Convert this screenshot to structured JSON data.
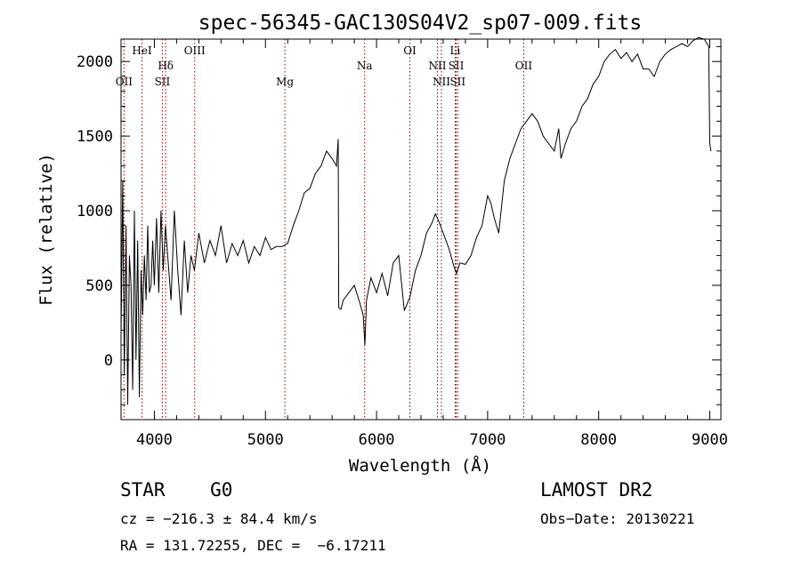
{
  "chart_data": {
    "type": "line",
    "title": "spec-56345-GAC130S04V2_sp07-009.fits",
    "xlabel": "Wavelength (Å)",
    "ylabel": "Flux (relative)",
    "xlim": [
      3700,
      9100
    ],
    "ylim": [
      -400,
      2150
    ],
    "xticks": [
      {
        "v": 4000,
        "label": "4000"
      },
      {
        "v": 5000,
        "label": "5000"
      },
      {
        "v": 6000,
        "label": "6000"
      },
      {
        "v": 7000,
        "label": "7000"
      },
      {
        "v": 8000,
        "label": "8000"
      },
      {
        "v": 9000,
        "label": "9000"
      }
    ],
    "yticks": [
      {
        "v": 0,
        "label": "0"
      },
      {
        "v": 500,
        "label": "500"
      },
      {
        "v": 1000,
        "label": "1000"
      },
      {
        "v": 1500,
        "label": "1500"
      },
      {
        "v": 2000,
        "label": "2000"
      }
    ],
    "line_color": "#000000",
    "marker_color": "#8b0000",
    "lines": [
      {
        "label": "OII",
        "x": 3727,
        "row": 3
      },
      {
        "label": "HeI",
        "x": 3889,
        "row": 1
      },
      {
        "label": "Hδ",
        "x": 4102,
        "row": 2
      },
      {
        "label": "SII",
        "x": 4072,
        "row": 3
      },
      {
        "label": "OIII",
        "x": 4363,
        "row": 1
      },
      {
        "label": "Mg",
        "x": 5175,
        "row": 3
      },
      {
        "label": "Na",
        "x": 5893,
        "row": 2
      },
      {
        "label": "OI",
        "x": 6300,
        "row": 1
      },
      {
        "label": "NII",
        "x": 6548,
        "row": 2
      },
      {
        "label": "NII",
        "x": 6584,
        "row": 3
      },
      {
        "label": "Li",
        "x": 6708,
        "row": 1
      },
      {
        "label": "SII",
        "x": 6717,
        "row": 2
      },
      {
        "label": "SII",
        "x": 6731,
        "row": 3
      },
      {
        "label": "OII",
        "x": 7325,
        "row": 2
      }
    ],
    "series": [
      {
        "x": [
          3700,
          3715,
          3730,
          3745,
          3760,
          3775,
          3790,
          3805,
          3820,
          3835,
          3850,
          3865,
          3880,
          3895,
          3910,
          3925,
          3940,
          3955,
          3970,
          3985,
          4000,
          4020,
          4040,
          4060,
          4080,
          4100,
          4120,
          4150,
          4180,
          4210,
          4240,
          4270,
          4300,
          4330,
          4360,
          4400,
          4450,
          4500,
          4550,
          4600,
          4650,
          4700,
          4750,
          4800,
          4850,
          4900,
          4950,
          5000,
          5050,
          5100,
          5150,
          5200,
          5250,
          5300,
          5350,
          5400,
          5450,
          5500,
          5550,
          5600,
          5640,
          5655,
          5660,
          5680,
          5700,
          5750,
          5800,
          5850,
          5880,
          5895,
          5910,
          5950,
          6000,
          6050,
          6100,
          6150,
          6200,
          6250,
          6300,
          6350,
          6400,
          6450,
          6500,
          6530,
          6560,
          6600,
          6650,
          6700,
          6720,
          6750,
          6800,
          6850,
          6900,
          6950,
          7000,
          7030,
          7060,
          7100,
          7150,
          7200,
          7250,
          7300,
          7350,
          7400,
          7450,
          7500,
          7550,
          7600,
          7640,
          7660,
          7700,
          7750,
          7800,
          7850,
          7900,
          7950,
          8000,
          8050,
          8100,
          8150,
          8200,
          8250,
          8300,
          8350,
          8400,
          8450,
          8500,
          8550,
          8600,
          8650,
          8700,
          8750,
          8800,
          8850,
          8900,
          8950,
          8990,
          9000,
          9010
        ],
        "values": [
          150,
          1200,
          -100,
          900,
          -300,
          700,
          500,
          -200,
          1000,
          0,
          800,
          -250,
          600,
          300,
          700,
          400,
          900,
          450,
          500,
          800,
          500,
          950,
          450,
          1000,
          600,
          900,
          700,
          400,
          1000,
          600,
          300,
          800,
          450,
          700,
          600,
          850,
          650,
          800,
          700,
          900,
          650,
          780,
          700,
          800,
          650,
          760,
          700,
          820,
          740,
          760,
          760,
          780,
          900,
          1000,
          1120,
          1150,
          1250,
          1300,
          1400,
          1350,
          1300,
          1480,
          350,
          340,
          400,
          450,
          500,
          380,
          300,
          100,
          400,
          550,
          450,
          580,
          430,
          650,
          700,
          330,
          420,
          600,
          700,
          850,
          920,
          980,
          930,
          850,
          750,
          620,
          580,
          650,
          640,
          700,
          820,
          900,
          1100,
          1050,
          950,
          850,
          1200,
          1350,
          1450,
          1550,
          1600,
          1650,
          1600,
          1500,
          1450,
          1400,
          1550,
          1350,
          1450,
          1550,
          1600,
          1700,
          1750,
          1850,
          1900,
          2000,
          2050,
          2080,
          2020,
          2060,
          2000,
          2050,
          1950,
          1950,
          1900,
          2000,
          2050,
          2080,
          2100,
          2120,
          2100,
          2140,
          2160,
          2150,
          2100,
          1450,
          1400
        ]
      }
    ]
  },
  "info": {
    "class_label": "STAR    G0",
    "survey_label": "LAMOST DR2",
    "cz_text": "cz = −216.3 ± 84.4 km/s",
    "obs_date_text": "Obs−Date: 20130221",
    "coords_text": "RA = 131.72255, DEC =  −6.17211"
  }
}
